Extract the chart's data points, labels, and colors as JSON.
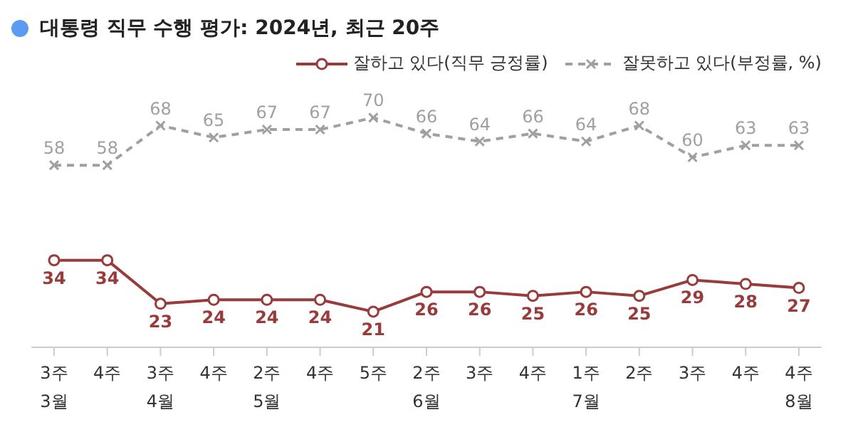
{
  "chart_data": {
    "type": "line",
    "title": "대통령 직무 수행 평가: 2024년, 최근 20주",
    "categories": [
      "3주\n3월",
      "4주",
      "3주\n4월",
      "4주",
      "2주\n5월",
      "4주",
      "5주",
      "2주\n6월",
      "3주",
      "4주",
      "1주\n7월",
      "2주",
      "3주",
      "4주",
      "4주\n8월"
    ],
    "series": [
      {
        "name": "잘하고 있다(직무 긍정률)",
        "color": "#983b3b",
        "marker": "circle",
        "line_style": "solid",
        "values": [
          34,
          34,
          23,
          24,
          24,
          24,
          21,
          26,
          26,
          25,
          26,
          25,
          29,
          28,
          27
        ]
      },
      {
        "name": "잘못하고 있다(부정률, %)",
        "color": "#a0a0a0",
        "marker": "cross",
        "line_style": "dashed",
        "values": [
          58,
          58,
          68,
          65,
          67,
          67,
          70,
          66,
          64,
          66,
          64,
          68,
          60,
          63,
          63
        ]
      }
    ],
    "data_labels": true,
    "legend": "top right",
    "grid": false,
    "tick_labels": "x"
  }
}
